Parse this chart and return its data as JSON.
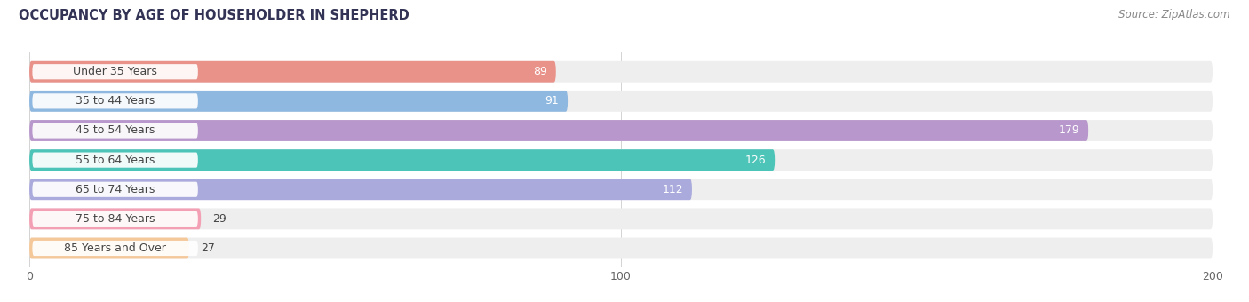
{
  "title": "OCCUPANCY BY AGE OF HOUSEHOLDER IN SHEPHERD",
  "source": "Source: ZipAtlas.com",
  "categories": [
    "Under 35 Years",
    "35 to 44 Years",
    "45 to 54 Years",
    "55 to 64 Years",
    "65 to 74 Years",
    "75 to 84 Years",
    "85 Years and Over"
  ],
  "values": [
    89,
    91,
    179,
    126,
    112,
    29,
    27
  ],
  "bar_colors": [
    "#E8928A",
    "#8FB8E0",
    "#B898CC",
    "#4DC4B8",
    "#AAAADD",
    "#F4A0B4",
    "#F5C89A"
  ],
  "bg_colors": [
    "#EEEEEE",
    "#EEEEEE",
    "#EEEEEE",
    "#EEEEEE",
    "#EEEEEE",
    "#EEEEEE",
    "#EEEEEE"
  ],
  "xlim": [
    0,
    200
  ],
  "xticks": [
    0,
    100,
    200
  ],
  "bar_height": 0.72,
  "figsize": [
    14.06,
    3.4
  ],
  "dpi": 100,
  "title_fontsize": 10.5,
  "label_fontsize": 9,
  "value_fontsize": 9,
  "source_fontsize": 8.5,
  "tick_fontsize": 9
}
